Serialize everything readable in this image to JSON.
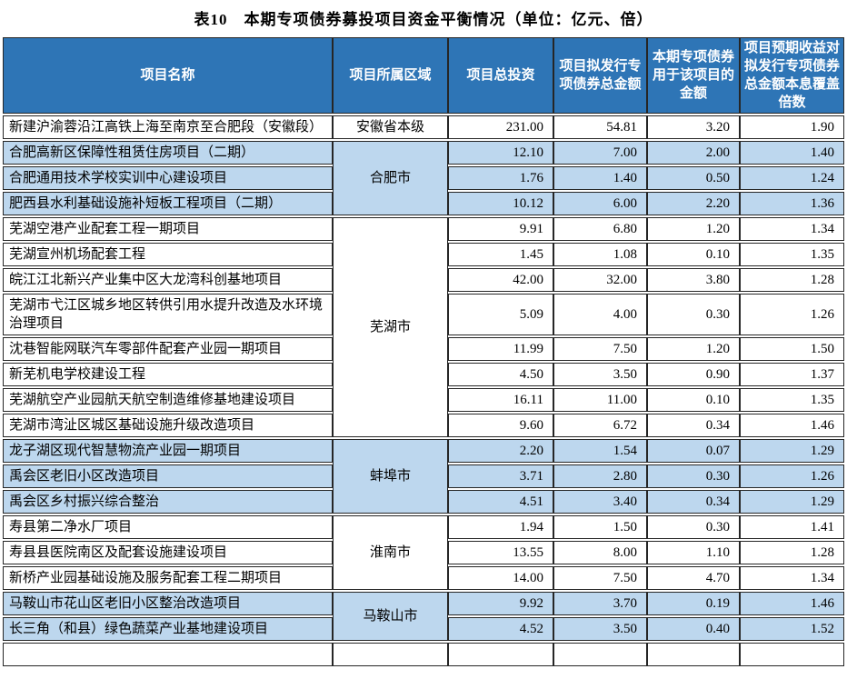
{
  "title": "表10　本期专项债券募投项目资金平衡情况（单位：亿元、倍）",
  "table": {
    "columns": [
      "项目名称",
      "项目所属区域",
      "项目总投资",
      "项目拟发行专项债券总金额",
      "本期专项债券用于该项目的金额",
      "项目预期收益对拟发行专项债券总金额本息覆盖倍数"
    ],
    "groups": [
      {
        "region": "安徽省本级",
        "shaded": false,
        "rows": [
          {
            "name": "新建沪渝蓉沿江高铁上海至南京至合肥段（安徽段）",
            "total_investment": "231.00",
            "bond_total": "54.81",
            "current_amount": "3.20",
            "coverage": "1.90"
          }
        ]
      },
      {
        "region": "合肥市",
        "shaded": true,
        "rows": [
          {
            "name": "合肥高新区保障性租赁住房项目（二期）",
            "total_investment": "12.10",
            "bond_total": "7.00",
            "current_amount": "2.00",
            "coverage": "1.40"
          },
          {
            "name": "合肥通用技术学校实训中心建设项目",
            "total_investment": "1.76",
            "bond_total": "1.40",
            "current_amount": "0.50",
            "coverage": "1.24"
          },
          {
            "name": "肥西县水利基础设施补短板工程项目（二期）",
            "total_investment": "10.12",
            "bond_total": "6.00",
            "current_amount": "2.20",
            "coverage": "1.36"
          }
        ]
      },
      {
        "region": "芜湖市",
        "shaded": false,
        "rows": [
          {
            "name": "芜湖空港产业配套工程一期项目",
            "total_investment": "9.91",
            "bond_total": "6.80",
            "current_amount": "1.20",
            "coverage": "1.34"
          },
          {
            "name": "芜湖宣州机场配套工程",
            "total_investment": "1.45",
            "bond_total": "1.08",
            "current_amount": "0.10",
            "coverage": "1.35"
          },
          {
            "name": "皖江江北新兴产业集中区大龙湾科创基地项目",
            "total_investment": "42.00",
            "bond_total": "32.00",
            "current_amount": "3.80",
            "coverage": "1.28"
          },
          {
            "name": "芜湖市弋江区城乡地区转供引用水提升改造及水环境治理项目",
            "total_investment": "5.09",
            "bond_total": "4.00",
            "current_amount": "0.30",
            "coverage": "1.26"
          },
          {
            "name": "沈巷智能网联汽车零部件配套产业园一期项目",
            "total_investment": "11.99",
            "bond_total": "7.50",
            "current_amount": "1.20",
            "coverage": "1.50"
          },
          {
            "name": "新芜机电学校建设工程",
            "total_investment": "4.50",
            "bond_total": "3.50",
            "current_amount": "0.90",
            "coverage": "1.37"
          },
          {
            "name": "芜湖航空产业园航天航空制造维修基地建设项目",
            "total_investment": "16.11",
            "bond_total": "11.00",
            "current_amount": "0.10",
            "coverage": "1.35"
          },
          {
            "name": "芜湖市湾沚区城区基础设施升级改造项目",
            "total_investment": "9.60",
            "bond_total": "6.72",
            "current_amount": "0.34",
            "coverage": "1.46"
          }
        ]
      },
      {
        "region": "蚌埠市",
        "shaded": true,
        "rows": [
          {
            "name": "龙子湖区现代智慧物流产业园一期项目",
            "total_investment": "2.20",
            "bond_total": "1.54",
            "current_amount": "0.07",
            "coverage": "1.29"
          },
          {
            "name": "禹会区老旧小区改造项目",
            "total_investment": "3.71",
            "bond_total": "2.80",
            "current_amount": "0.30",
            "coverage": "1.26"
          },
          {
            "name": "禹会区乡村振兴综合整治",
            "total_investment": "4.51",
            "bond_total": "3.40",
            "current_amount": "0.34",
            "coverage": "1.29"
          }
        ]
      },
      {
        "region": "淮南市",
        "shaded": false,
        "rows": [
          {
            "name": "寿县第二净水厂项目",
            "total_investment": "1.94",
            "bond_total": "1.50",
            "current_amount": "0.30",
            "coverage": "1.41"
          },
          {
            "name": "寿县县医院南区及配套设施建设项目",
            "total_investment": "13.55",
            "bond_total": "8.00",
            "current_amount": "1.10",
            "coverage": "1.28"
          },
          {
            "name": "新桥产业园基础设施及服务配套工程二期项目",
            "total_investment": "14.00",
            "bond_total": "7.50",
            "current_amount": "4.70",
            "coverage": "1.34"
          }
        ]
      },
      {
        "region": "马鞍山市",
        "shaded": true,
        "rows": [
          {
            "name": "马鞍山市花山区老旧小区整治改造项目",
            "total_investment": "9.92",
            "bond_total": "3.70",
            "current_amount": "0.19",
            "coverage": "1.46"
          },
          {
            "name": "长三角（和县）绿色蔬菜产业基地建设项目",
            "total_investment": "4.52",
            "bond_total": "3.50",
            "current_amount": "0.40",
            "coverage": "1.52"
          }
        ]
      },
      {
        "region": "",
        "shaded": false,
        "partial": true,
        "rows": [
          {
            "name": "",
            "total_investment": "",
            "bond_total": "",
            "current_amount": "",
            "coverage": ""
          }
        ]
      }
    ],
    "colors": {
      "header_bg": "#2E75B6",
      "header_text": "#FFFFFF",
      "shaded_row_bg": "#BDD7EE",
      "border": "#262626"
    }
  }
}
